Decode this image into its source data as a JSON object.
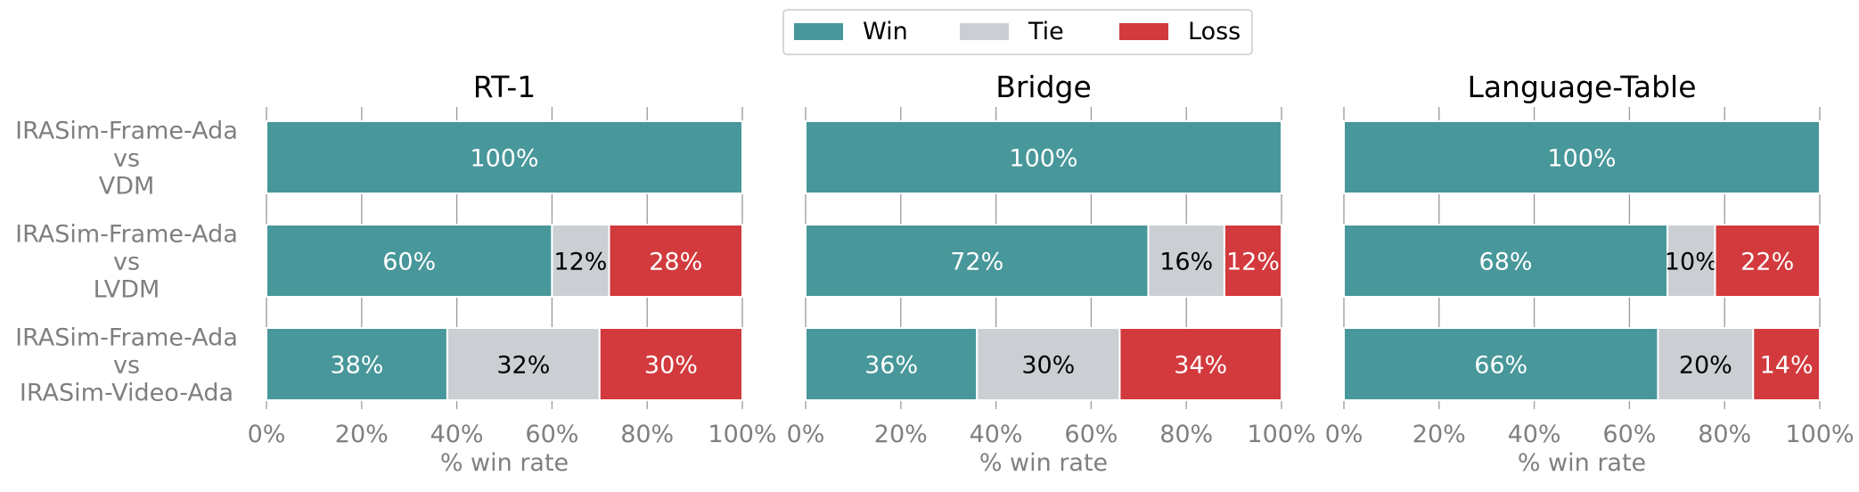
{
  "legend": {
    "placement": "top-center",
    "items": [
      {
        "label": "Win",
        "color": "#48979a"
      },
      {
        "label": "Tie",
        "color": "#cbcfd4"
      },
      {
        "label": "Loss",
        "color": "#d23a3d"
      }
    ]
  },
  "chart_data": [
    {
      "type": "bar",
      "orientation": "horizontal",
      "stacked": true,
      "title": "RT-1",
      "xlabel": "% win rate",
      "xlim": [
        0,
        100
      ],
      "xticks": [
        "0%",
        "20%",
        "40%",
        "60%",
        "80%",
        "100%"
      ],
      "categories": [
        "IRASim-Frame-Ada\nvs\nVDM",
        "IRASim-Frame-Ada\nvs\nLVDM",
        "IRASim-Frame-Ada\nvs\nIRASim-Video-Ada"
      ],
      "series": [
        {
          "name": "Win",
          "values": [
            100,
            60,
            38
          ]
        },
        {
          "name": "Tie",
          "values": [
            0,
            12,
            32
          ]
        },
        {
          "name": "Loss",
          "values": [
            0,
            28,
            30
          ]
        }
      ]
    },
    {
      "type": "bar",
      "orientation": "horizontal",
      "stacked": true,
      "title": "Bridge",
      "xlabel": "% win rate",
      "xlim": [
        0,
        100
      ],
      "xticks": [
        "0%",
        "20%",
        "40%",
        "60%",
        "80%",
        "100%"
      ],
      "categories": [
        "IRASim-Frame-Ada\nvs\nVDM",
        "IRASim-Frame-Ada\nvs\nLVDM",
        "IRASim-Frame-Ada\nvs\nIRASim-Video-Ada"
      ],
      "series": [
        {
          "name": "Win",
          "values": [
            100,
            72,
            36
          ]
        },
        {
          "name": "Tie",
          "values": [
            0,
            16,
            30
          ]
        },
        {
          "name": "Loss",
          "values": [
            0,
            12,
            34
          ]
        }
      ]
    },
    {
      "type": "bar",
      "orientation": "horizontal",
      "stacked": true,
      "title": "Language-Table",
      "xlabel": "% win rate",
      "xlim": [
        0,
        100
      ],
      "xticks": [
        "0%",
        "20%",
        "40%",
        "60%",
        "80%",
        "100%"
      ],
      "categories": [
        "IRASim-Frame-Ada\nvs\nVDM",
        "IRASim-Frame-Ada\nvs\nLVDM",
        "IRASim-Frame-Ada\nvs\nIRASim-Video-Ada"
      ],
      "series": [
        {
          "name": "Win",
          "values": [
            100,
            68,
            66
          ]
        },
        {
          "name": "Tie",
          "values": [
            0,
            10,
            20
          ]
        },
        {
          "name": "Loss",
          "values": [
            0,
            22,
            14
          ]
        }
      ]
    }
  ]
}
